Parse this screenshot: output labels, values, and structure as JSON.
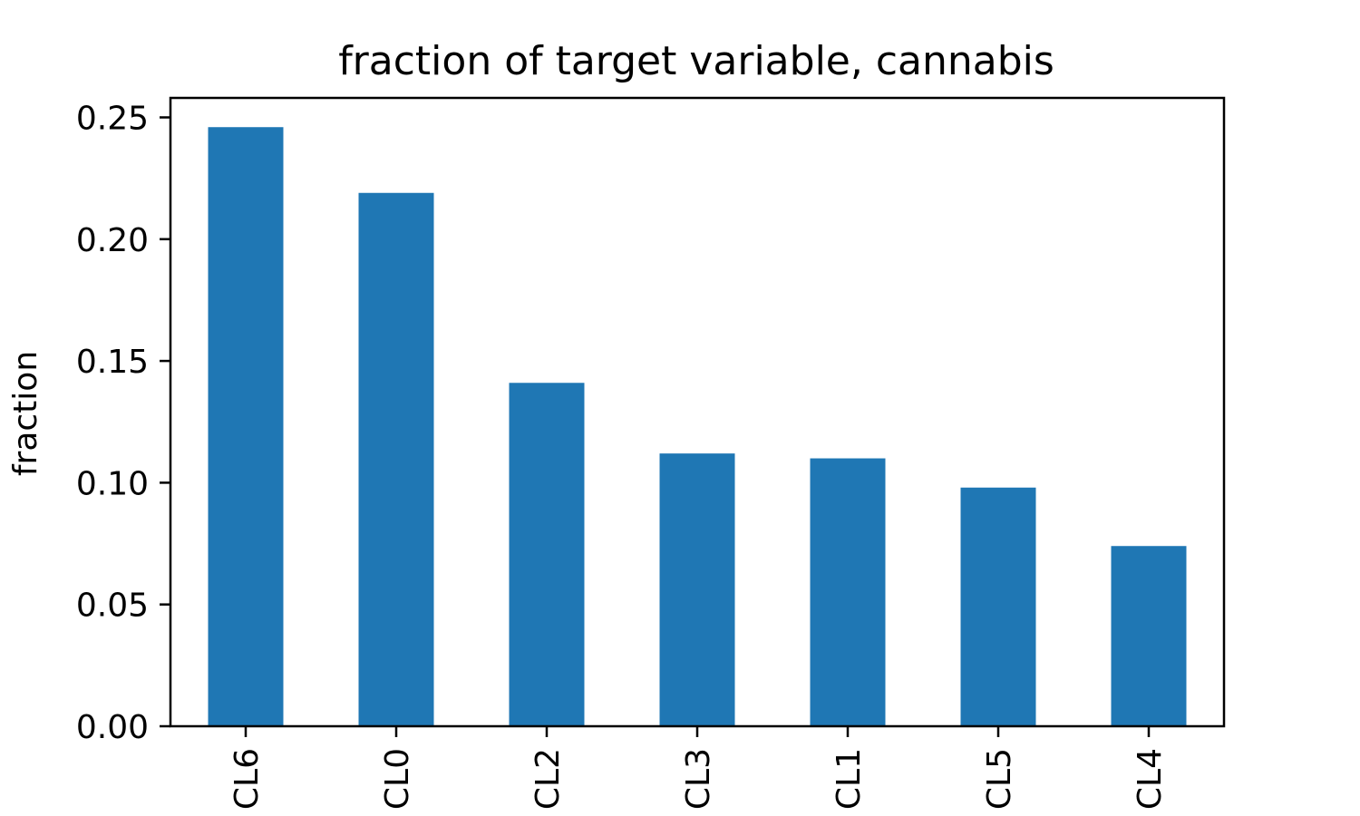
{
  "chart_data": {
    "type": "bar",
    "title": "fraction of target variable, cannabis",
    "xlabel": "",
    "ylabel": "fraction",
    "categories": [
      "CL6",
      "CL0",
      "CL2",
      "CL3",
      "CL1",
      "CL5",
      "CL4"
    ],
    "values": [
      0.246,
      0.219,
      0.141,
      0.112,
      0.11,
      0.098,
      0.074
    ],
    "ylim": [
      0,
      0.258
    ],
    "yticks": [
      0.0,
      0.05,
      0.1,
      0.15,
      0.2,
      0.25
    ],
    "ytick_labels": [
      "0.00",
      "0.05",
      "0.10",
      "0.15",
      "0.20",
      "0.25"
    ],
    "bar_color": "#1f77b4",
    "grid": false,
    "legend": "none"
  }
}
